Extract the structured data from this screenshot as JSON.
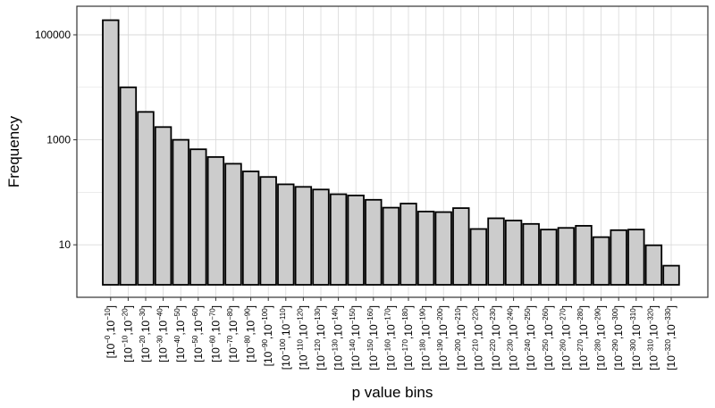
{
  "chart_data": {
    "type": "bar",
    "title": "",
    "xlabel": "p value bins",
    "ylabel": "Frequency",
    "y_scale": "log10",
    "ylim": [
      1,
      350000
    ],
    "yticks": [
      10,
      1000,
      100000
    ],
    "ytick_labels": [
      "10",
      "1000",
      "100000"
    ],
    "grid": true,
    "legend": "none",
    "colors": {
      "bar_fill": "#cccccc",
      "bar_stroke": "#000000",
      "grid": "#d9d9d9",
      "panel_border": "#333333"
    },
    "categories": [
      {
        "a": "0",
        "b": "10"
      },
      {
        "a": "10",
        "b": "20"
      },
      {
        "a": "20",
        "b": "30"
      },
      {
        "a": "30",
        "b": "40"
      },
      {
        "a": "40",
        "b": "50"
      },
      {
        "a": "50",
        "b": "60"
      },
      {
        "a": "60",
        "b": "70"
      },
      {
        "a": "70",
        "b": "80"
      },
      {
        "a": "80",
        "b": "90"
      },
      {
        "a": "90",
        "b": "100"
      },
      {
        "a": "100",
        "b": "110"
      },
      {
        "a": "110",
        "b": "120"
      },
      {
        "a": "120",
        "b": "130"
      },
      {
        "a": "130",
        "b": "140"
      },
      {
        "a": "140",
        "b": "150"
      },
      {
        "a": "150",
        "b": "160"
      },
      {
        "a": "160",
        "b": "170"
      },
      {
        "a": "170",
        "b": "180"
      },
      {
        "a": "180",
        "b": "190"
      },
      {
        "a": "190",
        "b": "200"
      },
      {
        "a": "200",
        "b": "210"
      },
      {
        "a": "210",
        "b": "220"
      },
      {
        "a": "220",
        "b": "230"
      },
      {
        "a": "230",
        "b": "240"
      },
      {
        "a": "240",
        "b": "250"
      },
      {
        "a": "250",
        "b": "260"
      },
      {
        "a": "260",
        "b": "270"
      },
      {
        "a": "270",
        "b": "280"
      },
      {
        "a": "280",
        "b": "290"
      },
      {
        "a": "290",
        "b": "300"
      },
      {
        "a": "300",
        "b": "310"
      },
      {
        "a": "310",
        "b": "320"
      },
      {
        "a": "320",
        "b": "330"
      }
    ],
    "values": [
      190000,
      10000,
      3400,
      1750,
      1000,
      660,
      470,
      350,
      250,
      196,
      142,
      127,
      113,
      92,
      87,
      72,
      51,
      61,
      43,
      42,
      50,
      20,
      32,
      29,
      25,
      19.5,
      21,
      23,
      14,
      19,
      19.5,
      9.8,
      4
    ]
  }
}
